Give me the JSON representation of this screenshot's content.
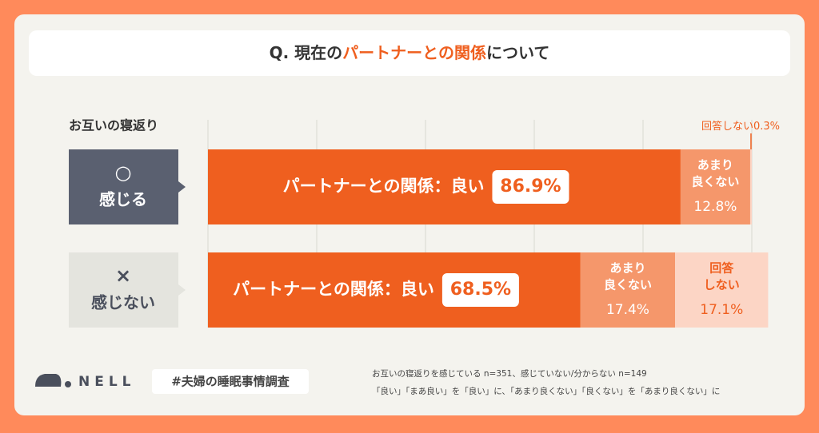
{
  "chart_data": {
    "type": "stacked-bar-horizontal",
    "title_parts": [
      "Q. 現在の",
      "パートナーとの関係",
      "について"
    ],
    "group_label": "お互いの寝返り",
    "categories": [
      "感じる",
      "感じない"
    ],
    "category_symbols": [
      "○",
      "×"
    ],
    "xlim": [
      0,
      100
    ],
    "xticks": [
      0,
      20,
      40,
      60,
      80,
      100
    ],
    "grid": true,
    "series": [
      {
        "name": "パートナーとの関係：良い",
        "color": "#ef5f1f",
        "values": [
          86.9,
          68.5
        ],
        "value_labels": [
          "86.9%",
          "68.5%"
        ],
        "row_labels": [
          [
            "パートナーとの関係：良い"
          ],
          [
            "パートナーとの関係：良い"
          ]
        ]
      },
      {
        "name": "あまり良くない",
        "color": "#f5976b",
        "values": [
          12.8,
          17.4
        ],
        "value_labels": [
          "12.8%",
          "17.4%"
        ],
        "row_labels": [
          [
            "あまり",
            "良くない"
          ],
          [
            "あまり",
            "良くない"
          ]
        ]
      },
      {
        "name": "回答しない",
        "color": "#fcd5c5",
        "values": [
          0.3,
          17.1
        ],
        "value_labels": [
          "0.3%",
          "17.1%"
        ],
        "row_labels": [
          [
            "回答しない"
          ],
          [
            "回答",
            "しない"
          ]
        ]
      }
    ]
  },
  "footer": {
    "logo": "NELL",
    "tag": "#夫婦の睡眠事情調査",
    "notes": [
      "お互いの寝返りを感じている n=351、感じていない/分からない n=149",
      "「良い」「まあ良い」を「良い」に、「あまり良くない」「良くない」を「あまり良くない」に"
    ]
  }
}
